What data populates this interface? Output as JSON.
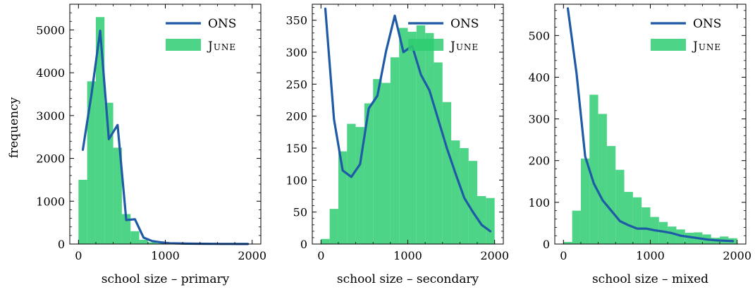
{
  "figure": {
    "ylabel": "frequency",
    "legend_labels": {
      "line": "ONS",
      "bars": "June"
    },
    "colors": {
      "bars": "#2ecc71",
      "line": "#1f5aa6"
    }
  },
  "chart_data": [
    {
      "type": "bar",
      "xlabel": "school size – primary",
      "xlim": [
        -100,
        2100
      ],
      "ylim": [
        0,
        5600
      ],
      "xticks": [
        0,
        1000,
        2000
      ],
      "yticks": [
        0,
        1000,
        2000,
        3000,
        4000,
        5000
      ],
      "legend_position": "top-right",
      "bars": {
        "name": "June",
        "bin_edges": [
          0,
          100,
          200,
          300,
          400,
          500,
          600,
          700,
          800,
          900,
          1000,
          1100,
          1200,
          1300,
          1400,
          1500,
          1600,
          1700,
          1800,
          1900,
          2000
        ],
        "values": [
          1500,
          3800,
          5300,
          3300,
          2250,
          700,
          300,
          100,
          40,
          20,
          10,
          5,
          3,
          2,
          2,
          1,
          1,
          1,
          1,
          1
        ]
      },
      "line": {
        "name": "ONS",
        "x": [
          50,
          150,
          250,
          350,
          450,
          550,
          650,
          750,
          850,
          950,
          1050,
          1150,
          1250,
          1350,
          1450,
          1550,
          1650,
          1750,
          1850,
          1950
        ],
        "y": [
          2200,
          3500,
          4980,
          2450,
          2780,
          560,
          580,
          150,
          70,
          40,
          20,
          15,
          10,
          8,
          6,
          5,
          4,
          3,
          2,
          2
        ]
      }
    },
    {
      "type": "bar",
      "xlabel": "school size – secondary",
      "xlim": [
        -100,
        2100
      ],
      "ylim": [
        0,
        375
      ],
      "xticks": [
        0,
        1000,
        2000
      ],
      "yticks": [
        0,
        50,
        100,
        150,
        200,
        250,
        300,
        350
      ],
      "legend_position": "top-right",
      "bars": {
        "name": "June",
        "bin_edges": [
          0,
          100,
          200,
          300,
          400,
          500,
          600,
          700,
          800,
          900,
          1000,
          1100,
          1200,
          1300,
          1400,
          1500,
          1600,
          1700,
          1800,
          1900,
          2000
        ],
        "values": [
          8,
          55,
          145,
          188,
          183,
          220,
          258,
          252,
          292,
          338,
          332,
          342,
          330,
          284,
          222,
          162,
          150,
          130,
          75,
          72
        ]
      },
      "line": {
        "name": "ONS",
        "x": [
          50,
          150,
          250,
          350,
          450,
          550,
          650,
          750,
          850,
          950,
          1050,
          1150,
          1250,
          1350,
          1450,
          1550,
          1650,
          1750,
          1850,
          1950
        ],
        "y": [
          368,
          195,
          115,
          105,
          125,
          212,
          232,
          302,
          357,
          300,
          310,
          265,
          240,
          195,
          150,
          110,
          72,
          50,
          30,
          20
        ]
      }
    },
    {
      "type": "bar",
      "xlabel": "school size – mixed",
      "xlim": [
        -100,
        2100
      ],
      "ylim": [
        0,
        575
      ],
      "xticks": [
        0,
        1000,
        2000
      ],
      "yticks": [
        0,
        100,
        200,
        300,
        400,
        500
      ],
      "legend_position": "top-right",
      "bars": {
        "name": "June",
        "bin_edges": [
          0,
          100,
          200,
          300,
          400,
          500,
          600,
          700,
          800,
          900,
          1000,
          1100,
          1200,
          1300,
          1400,
          1500,
          1600,
          1700,
          1800,
          1900,
          2000
        ],
        "values": [
          5,
          80,
          205,
          358,
          312,
          235,
          178,
          125,
          112,
          88,
          65,
          53,
          42,
          35,
          27,
          28,
          23,
          15,
          18,
          14
        ]
      },
      "line": {
        "name": "ONS",
        "x": [
          50,
          150,
          250,
          350,
          450,
          550,
          650,
          750,
          850,
          950,
          1050,
          1150,
          1250,
          1350,
          1450,
          1550,
          1650,
          1750,
          1850,
          1950
        ],
        "y": [
          565,
          410,
          210,
          145,
          105,
          80,
          55,
          45,
          37,
          37,
          33,
          30,
          26,
          20,
          17,
          14,
          11,
          9,
          8,
          7
        ]
      }
    }
  ]
}
